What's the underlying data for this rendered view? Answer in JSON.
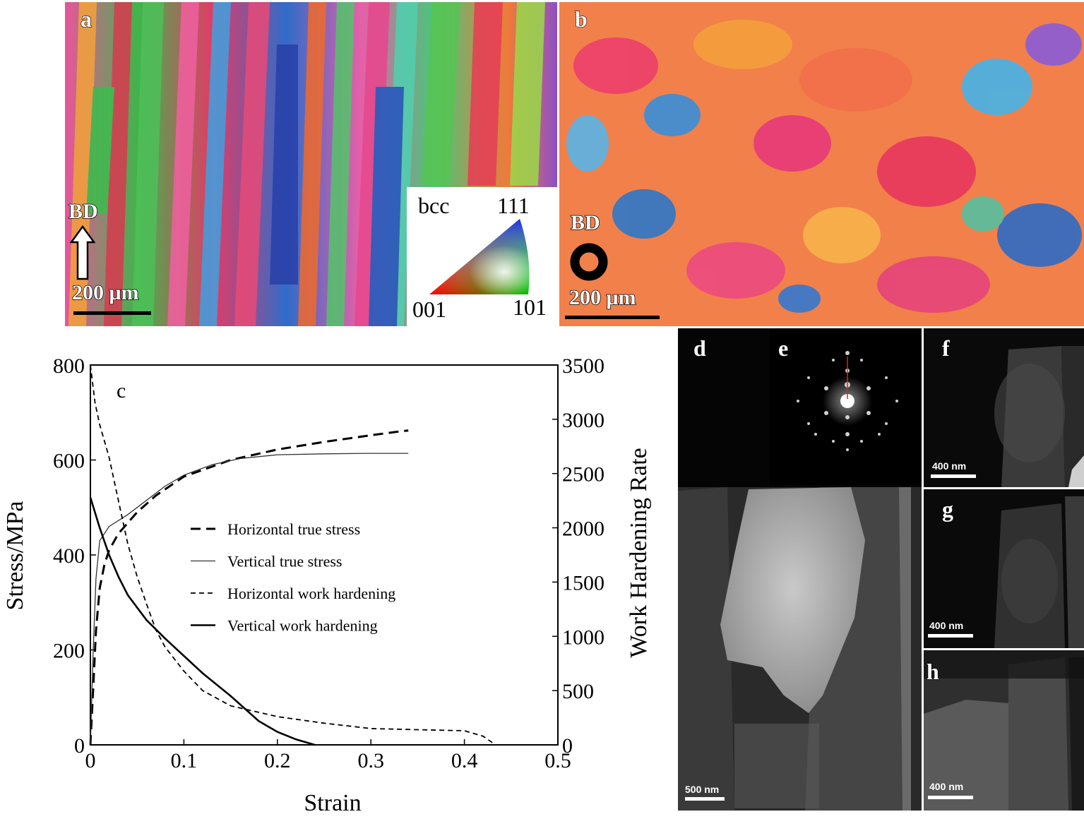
{
  "panels": {
    "a": {
      "label": "a",
      "direction": "BD",
      "scale": "200 μm"
    },
    "b": {
      "label": "b",
      "direction": "BD",
      "scale": "200 μm"
    },
    "ipf_key": {
      "phase": "bcc",
      "top": "111",
      "left": "001",
      "right": "101"
    },
    "d": {
      "label": "d",
      "scale": "500 nm"
    },
    "e": {
      "label": "e"
    },
    "f": {
      "label": "f",
      "scale": "400 nm"
    },
    "g": {
      "label": "g",
      "scale": "400 nm"
    },
    "h": {
      "label": "h",
      "scale": "400 nm"
    }
  },
  "chart_data": {
    "type": "line",
    "panel_label": "c",
    "xlabel": "Strain",
    "ylabel": "Stress/MPa",
    "y2label": "Work Hardening Rate",
    "xlim": [
      0,
      0.5
    ],
    "ylim": [
      0,
      800
    ],
    "y2lim": [
      0,
      3500
    ],
    "xticks": [
      "0",
      "0.1",
      "0.2",
      "0.3",
      "0.4",
      "0.5"
    ],
    "yticks": [
      "0",
      "200",
      "400",
      "600",
      "800"
    ],
    "y2ticks": [
      "0",
      "500",
      "1000",
      "1500",
      "2000",
      "2500",
      "3000",
      "3500"
    ],
    "legend_position": "center",
    "series": [
      {
        "name": "Horizontal true stress",
        "axis": "left",
        "style": "dashed-thick",
        "points": [
          [
            0.0,
            0
          ],
          [
            0.003,
            120
          ],
          [
            0.006,
            240
          ],
          [
            0.01,
            330
          ],
          [
            0.015,
            380
          ],
          [
            0.02,
            410
          ],
          [
            0.03,
            445
          ],
          [
            0.05,
            490
          ],
          [
            0.07,
            525
          ],
          [
            0.1,
            565
          ],
          [
            0.15,
            600
          ],
          [
            0.2,
            622
          ],
          [
            0.25,
            638
          ],
          [
            0.3,
            652
          ],
          [
            0.33,
            660
          ],
          [
            0.34,
            662
          ]
        ]
      },
      {
        "name": "Vertical true stress",
        "axis": "left",
        "style": "solid-thin",
        "points": [
          [
            0.0,
            0
          ],
          [
            0.003,
            200
          ],
          [
            0.006,
            350
          ],
          [
            0.01,
            430
          ],
          [
            0.02,
            460
          ],
          [
            0.04,
            485
          ],
          [
            0.06,
            515
          ],
          [
            0.08,
            545
          ],
          [
            0.1,
            568
          ],
          [
            0.13,
            590
          ],
          [
            0.16,
            603
          ],
          [
            0.2,
            611
          ],
          [
            0.25,
            613
          ],
          [
            0.3,
            614
          ],
          [
            0.34,
            614
          ]
        ]
      },
      {
        "name": "Horizontal work hardening",
        "axis": "right",
        "style": "dashed-thin",
        "points": [
          [
            0.0,
            3500
          ],
          [
            0.005,
            3150
          ],
          [
            0.01,
            2950
          ],
          [
            0.02,
            2650
          ],
          [
            0.03,
            2250
          ],
          [
            0.04,
            1850
          ],
          [
            0.05,
            1550
          ],
          [
            0.06,
            1300
          ],
          [
            0.07,
            1060
          ],
          [
            0.08,
            900
          ],
          [
            0.1,
            680
          ],
          [
            0.12,
            500
          ],
          [
            0.15,
            360
          ],
          [
            0.2,
            260
          ],
          [
            0.25,
            200
          ],
          [
            0.3,
            150
          ],
          [
            0.35,
            140
          ],
          [
            0.4,
            130
          ],
          [
            0.42,
            80
          ],
          [
            0.43,
            20
          ]
        ]
      },
      {
        "name": "Vertical work hardening",
        "axis": "right",
        "style": "solid-thick",
        "points": [
          [
            0.0,
            2280
          ],
          [
            0.01,
            2000
          ],
          [
            0.02,
            1750
          ],
          [
            0.03,
            1550
          ],
          [
            0.04,
            1380
          ],
          [
            0.06,
            1150
          ],
          [
            0.08,
            980
          ],
          [
            0.1,
            820
          ],
          [
            0.12,
            660
          ],
          [
            0.15,
            450
          ],
          [
            0.18,
            220
          ],
          [
            0.2,
            120
          ],
          [
            0.22,
            50
          ],
          [
            0.24,
            0
          ]
        ]
      }
    ]
  }
}
